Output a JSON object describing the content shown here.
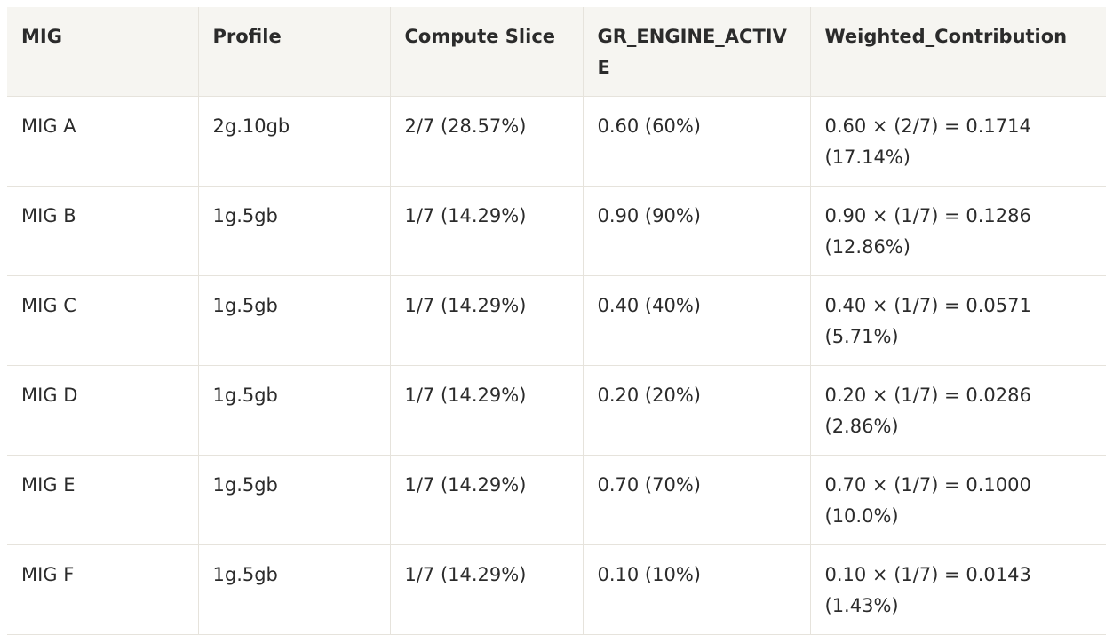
{
  "table": {
    "headers": [
      "MIG",
      "Profile",
      "Compute Slice",
      "GR_ENGINE_ACTIVE",
      "Weighted_Contribution"
    ],
    "rows": [
      [
        "MIG A",
        "2g.10gb",
        "2/7 (28.57%)",
        "0.60 (60%)",
        "0.60 × (2/7) = 0.1714 (17.14%)"
      ],
      [
        "MIG B",
        "1g.5gb",
        "1/7 (14.29%)",
        "0.90 (90%)",
        "0.90 × (1/7) = 0.1286 (12.86%)"
      ],
      [
        "MIG C",
        "1g.5gb",
        "1/7 (14.29%)",
        "0.40 (40%)",
        "0.40 × (1/7) = 0.0571 (5.71%)"
      ],
      [
        "MIG D",
        "1g.5gb",
        "1/7 (14.29%)",
        "0.20 (20%)",
        "0.20 × (1/7) = 0.0286 (2.86%)"
      ],
      [
        "MIG E",
        "1g.5gb",
        "1/7 (14.29%)",
        "0.70 (70%)",
        "0.70 × (1/7) = 0.1000 (10.0%)"
      ],
      [
        "MIG F",
        "1g.5gb",
        "1/7 (14.29%)",
        "0.10 (10%)",
        "0.10 × (1/7) = 0.0143 (1.43%)"
      ]
    ]
  }
}
